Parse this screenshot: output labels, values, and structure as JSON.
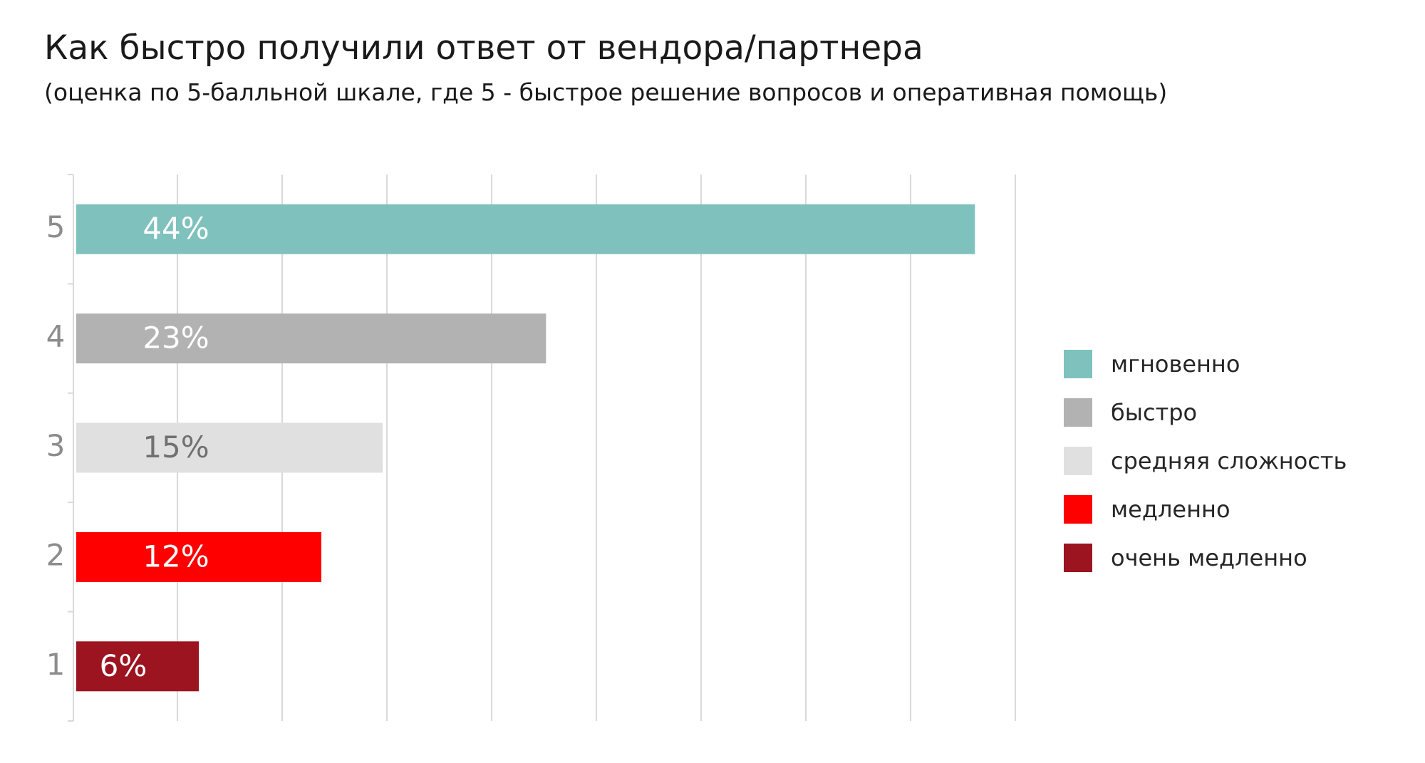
{
  "chart_data": {
    "type": "bar",
    "orientation": "horizontal",
    "title": "Как быстро получили ответ от вендора/партнера",
    "subtitle": "(оценка по 5-балльной шкале, где 5 - быстрое решение вопросов и оперативная помощь)",
    "categories": [
      "5",
      "4",
      "3",
      "2",
      "1"
    ],
    "values": [
      44,
      23,
      15,
      12,
      6
    ],
    "data_labels": [
      "44%",
      "23%",
      "15%",
      "12%",
      "6%"
    ],
    "bar_colors": [
      "#7fc1bd",
      "#b2b2b2",
      "#e0e0e0",
      "#ff0000",
      "#9b1420"
    ],
    "label_colors": [
      "#ffffff",
      "#ffffff",
      "#707070",
      "#ffffff",
      "#ffffff"
    ],
    "xlim": [
      0,
      45
    ],
    "grid": true,
    "legend_position": "right",
    "legend": [
      {
        "label": "мгновенно",
        "color": "#7fc1bd"
      },
      {
        "label": "быстро",
        "color": "#b2b2b2"
      },
      {
        "label": "средняя сложность",
        "color": "#e0e0e0"
      },
      {
        "label": "медленно",
        "color": "#ff0000"
      },
      {
        "label": "очень медленно",
        "color": "#9b1420"
      }
    ]
  }
}
